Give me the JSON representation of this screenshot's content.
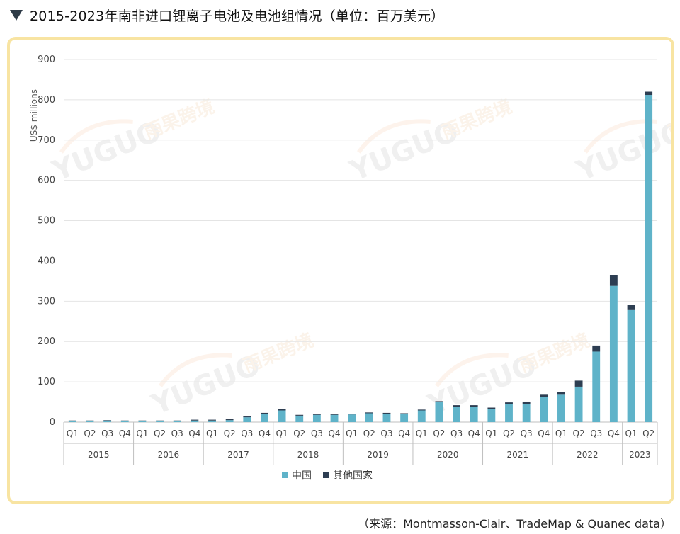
{
  "page": {
    "title": "2015-2023年南非进口锂离子电池及电池组情况（单位：百万美元）",
    "source": "（来源：Montmasson-Clair、TradeMap & Quanec data）",
    "watermark_text": "YUGUO",
    "watermark_cn": "雨果跨境"
  },
  "chart_data": {
    "type": "bar",
    "stacked": true,
    "title": "",
    "ylabel": "US$ millions",
    "xlabel": "",
    "ylim": [
      0,
      900
    ],
    "yticks": [
      0,
      100,
      200,
      300,
      400,
      500,
      600,
      700,
      800,
      900
    ],
    "grid": true,
    "legend_position": "bottom",
    "categories": [
      "Q1",
      "Q2",
      "Q3",
      "Q4",
      "Q1",
      "Q2",
      "Q3",
      "Q4",
      "Q1",
      "Q2",
      "Q3",
      "Q4",
      "Q1",
      "Q2",
      "Q3",
      "Q4",
      "Q1",
      "Q2",
      "Q3",
      "Q4",
      "Q1",
      "Q2",
      "Q3",
      "Q4",
      "Q1",
      "Q2",
      "Q3",
      "Q4",
      "Q1",
      "Q2",
      "Q3",
      "Q4",
      "Q1",
      "Q2"
    ],
    "year_groups": [
      {
        "label": "2015",
        "count": 4
      },
      {
        "label": "2016",
        "count": 4
      },
      {
        "label": "2017",
        "count": 4
      },
      {
        "label": "2018",
        "count": 4
      },
      {
        "label": "2019",
        "count": 4
      },
      {
        "label": "2020",
        "count": 4
      },
      {
        "label": "2021",
        "count": 4
      },
      {
        "label": "2022",
        "count": 4
      },
      {
        "label": "2023",
        "count": 2
      }
    ],
    "series": [
      {
        "name": "中国",
        "color": "#5fb3c9",
        "values": [
          3,
          3,
          4,
          3,
          3,
          3,
          3,
          4,
          4,
          5,
          12,
          21,
          29,
          16,
          18,
          18,
          19,
          22,
          21,
          20,
          29,
          50,
          38,
          38,
          32,
          45,
          45,
          62,
          68,
          88,
          175,
          338,
          278,
          812
        ]
      },
      {
        "name": "其他国家",
        "color": "#2d3e52",
        "values": [
          1,
          1,
          1,
          1,
          1,
          1,
          1,
          2,
          2,
          2,
          2,
          2,
          3,
          2,
          2,
          2,
          2,
          2,
          2,
          2,
          2,
          2,
          4,
          4,
          4,
          4,
          6,
          6,
          7,
          15,
          15,
          27,
          13,
          8
        ]
      }
    ]
  }
}
